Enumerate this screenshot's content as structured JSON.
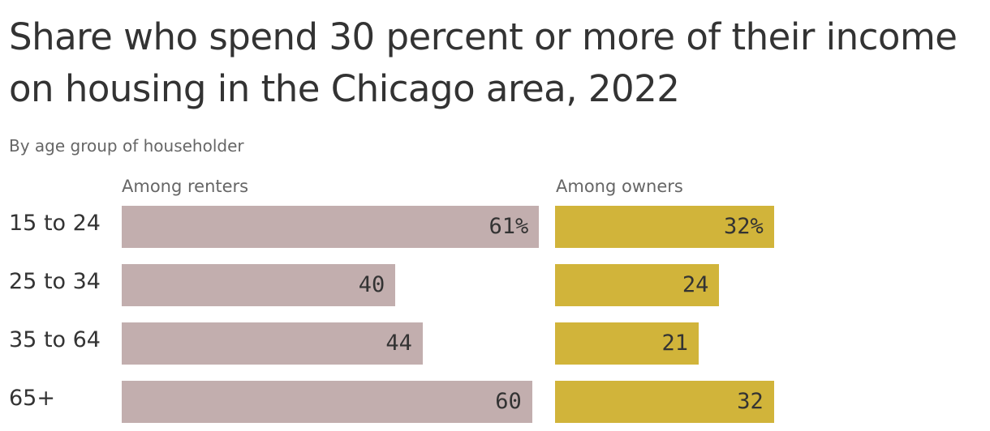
{
  "chart_data": {
    "type": "bar",
    "orientation": "horizontal",
    "title": "Share who spend 30 percent or more of their income on housing in the Chicago area, 2022",
    "subtitle": "By age group of householder",
    "categories": [
      "15 to 24",
      "25 to 34",
      "35 to 64",
      "65+"
    ],
    "series": [
      {
        "name": "Among renters",
        "values": [
          61,
          40,
          44,
          60
        ],
        "labels": [
          "61%",
          "40",
          "44",
          "60"
        ],
        "color": "#c2aeae"
      },
      {
        "name": "Among owners",
        "values": [
          32,
          24,
          21,
          32
        ],
        "labels": [
          "32%",
          "24",
          "21",
          "32"
        ],
        "color": "#d1b43a"
      }
    ],
    "xlim": [
      0,
      61
    ],
    "grid": false,
    "legend": "panel-headers"
  }
}
